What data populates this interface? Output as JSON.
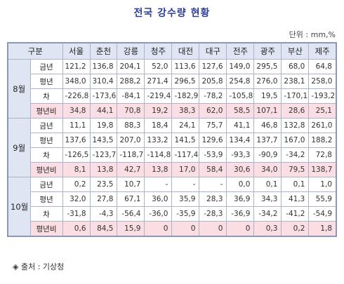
{
  "title": "전국 강수량 현황",
  "unit": "단위 : mm,%",
  "header": {
    "category": "구분",
    "cities": [
      "서울",
      "춘천",
      "강릉",
      "청주",
      "대전",
      "대구",
      "전주",
      "광주",
      "부산",
      "제주"
    ]
  },
  "months": [
    {
      "name": "8월",
      "rows": [
        {
          "label": "금년",
          "values": [
            "121,2",
            "136,8",
            "204,1",
            "52,0",
            "113,6",
            "127,6",
            "149,0",
            "295,5",
            "68,0",
            "64,8"
          ]
        },
        {
          "label": "평년",
          "values": [
            "348,0",
            "310,4",
            "288,2",
            "271,4",
            "296,5",
            "205,8",
            "254,8",
            "276,0",
            "238,1",
            "258,0"
          ]
        },
        {
          "label": "차",
          "values": [
            "-226,8",
            "-173,6",
            "-84,1",
            "-219,4",
            "-182,9",
            "-78,2",
            "-105,8",
            "19,5",
            "-170,1",
            "-193,2"
          ]
        },
        {
          "label": "평년비",
          "values": [
            "34,8",
            "44,1",
            "70,8",
            "19,2",
            "38,3",
            "62,0",
            "58,5",
            "107,1",
            "28,6",
            "25,1"
          ]
        }
      ]
    },
    {
      "name": "9월",
      "rows": [
        {
          "label": "금년",
          "values": [
            "11,1",
            "19,8",
            "88,3",
            "18,4",
            "24,1",
            "75,7",
            "41,1",
            "46,8",
            "132,8",
            "261,0"
          ]
        },
        {
          "label": "평년",
          "values": [
            "137,6",
            "143,5",
            "207,0",
            "133,2",
            "141,5",
            "129,6",
            "134,4",
            "137,7",
            "167,0",
            "188,2"
          ]
        },
        {
          "label": "차",
          "values": [
            "-126,5",
            "-123,7",
            "-118,7",
            "-114,8",
            "-117,4",
            "-53,9",
            "-93,3",
            "-90,9",
            "-34,2",
            "72,8"
          ]
        },
        {
          "label": "평년비",
          "values": [
            "8,1",
            "13,8",
            "42,7",
            "13,8",
            "17,0",
            "58,4",
            "30,6",
            "34,0",
            "79,5",
            "138,7"
          ]
        }
      ]
    },
    {
      "name": "10월",
      "rows": [
        {
          "label": "금년",
          "values": [
            "0,2",
            "23,5",
            "10,7",
            "-",
            "-",
            "-",
            "0,0",
            "0,1",
            "0,1",
            "1,0"
          ]
        },
        {
          "label": "평년",
          "values": [
            "32,0",
            "27,8",
            "67,1",
            "36,0",
            "35,9",
            "28,3",
            "36,9",
            "34,3",
            "41,3",
            "55,9"
          ]
        },
        {
          "label": "차",
          "values": [
            "-31,8",
            "-4,3",
            "-56,4",
            "-36,0",
            "-35,9",
            "-28,3",
            "-36,9",
            "-34,2",
            "-41,2",
            "-54,9"
          ]
        },
        {
          "label": "평년비",
          "values": [
            "0,6",
            "84,5",
            "15,9",
            "0",
            "0",
            "0",
            "0",
            "0,3",
            "0,2",
            "1,8"
          ]
        }
      ]
    }
  ],
  "source": "◈ 출처 : 기상청"
}
